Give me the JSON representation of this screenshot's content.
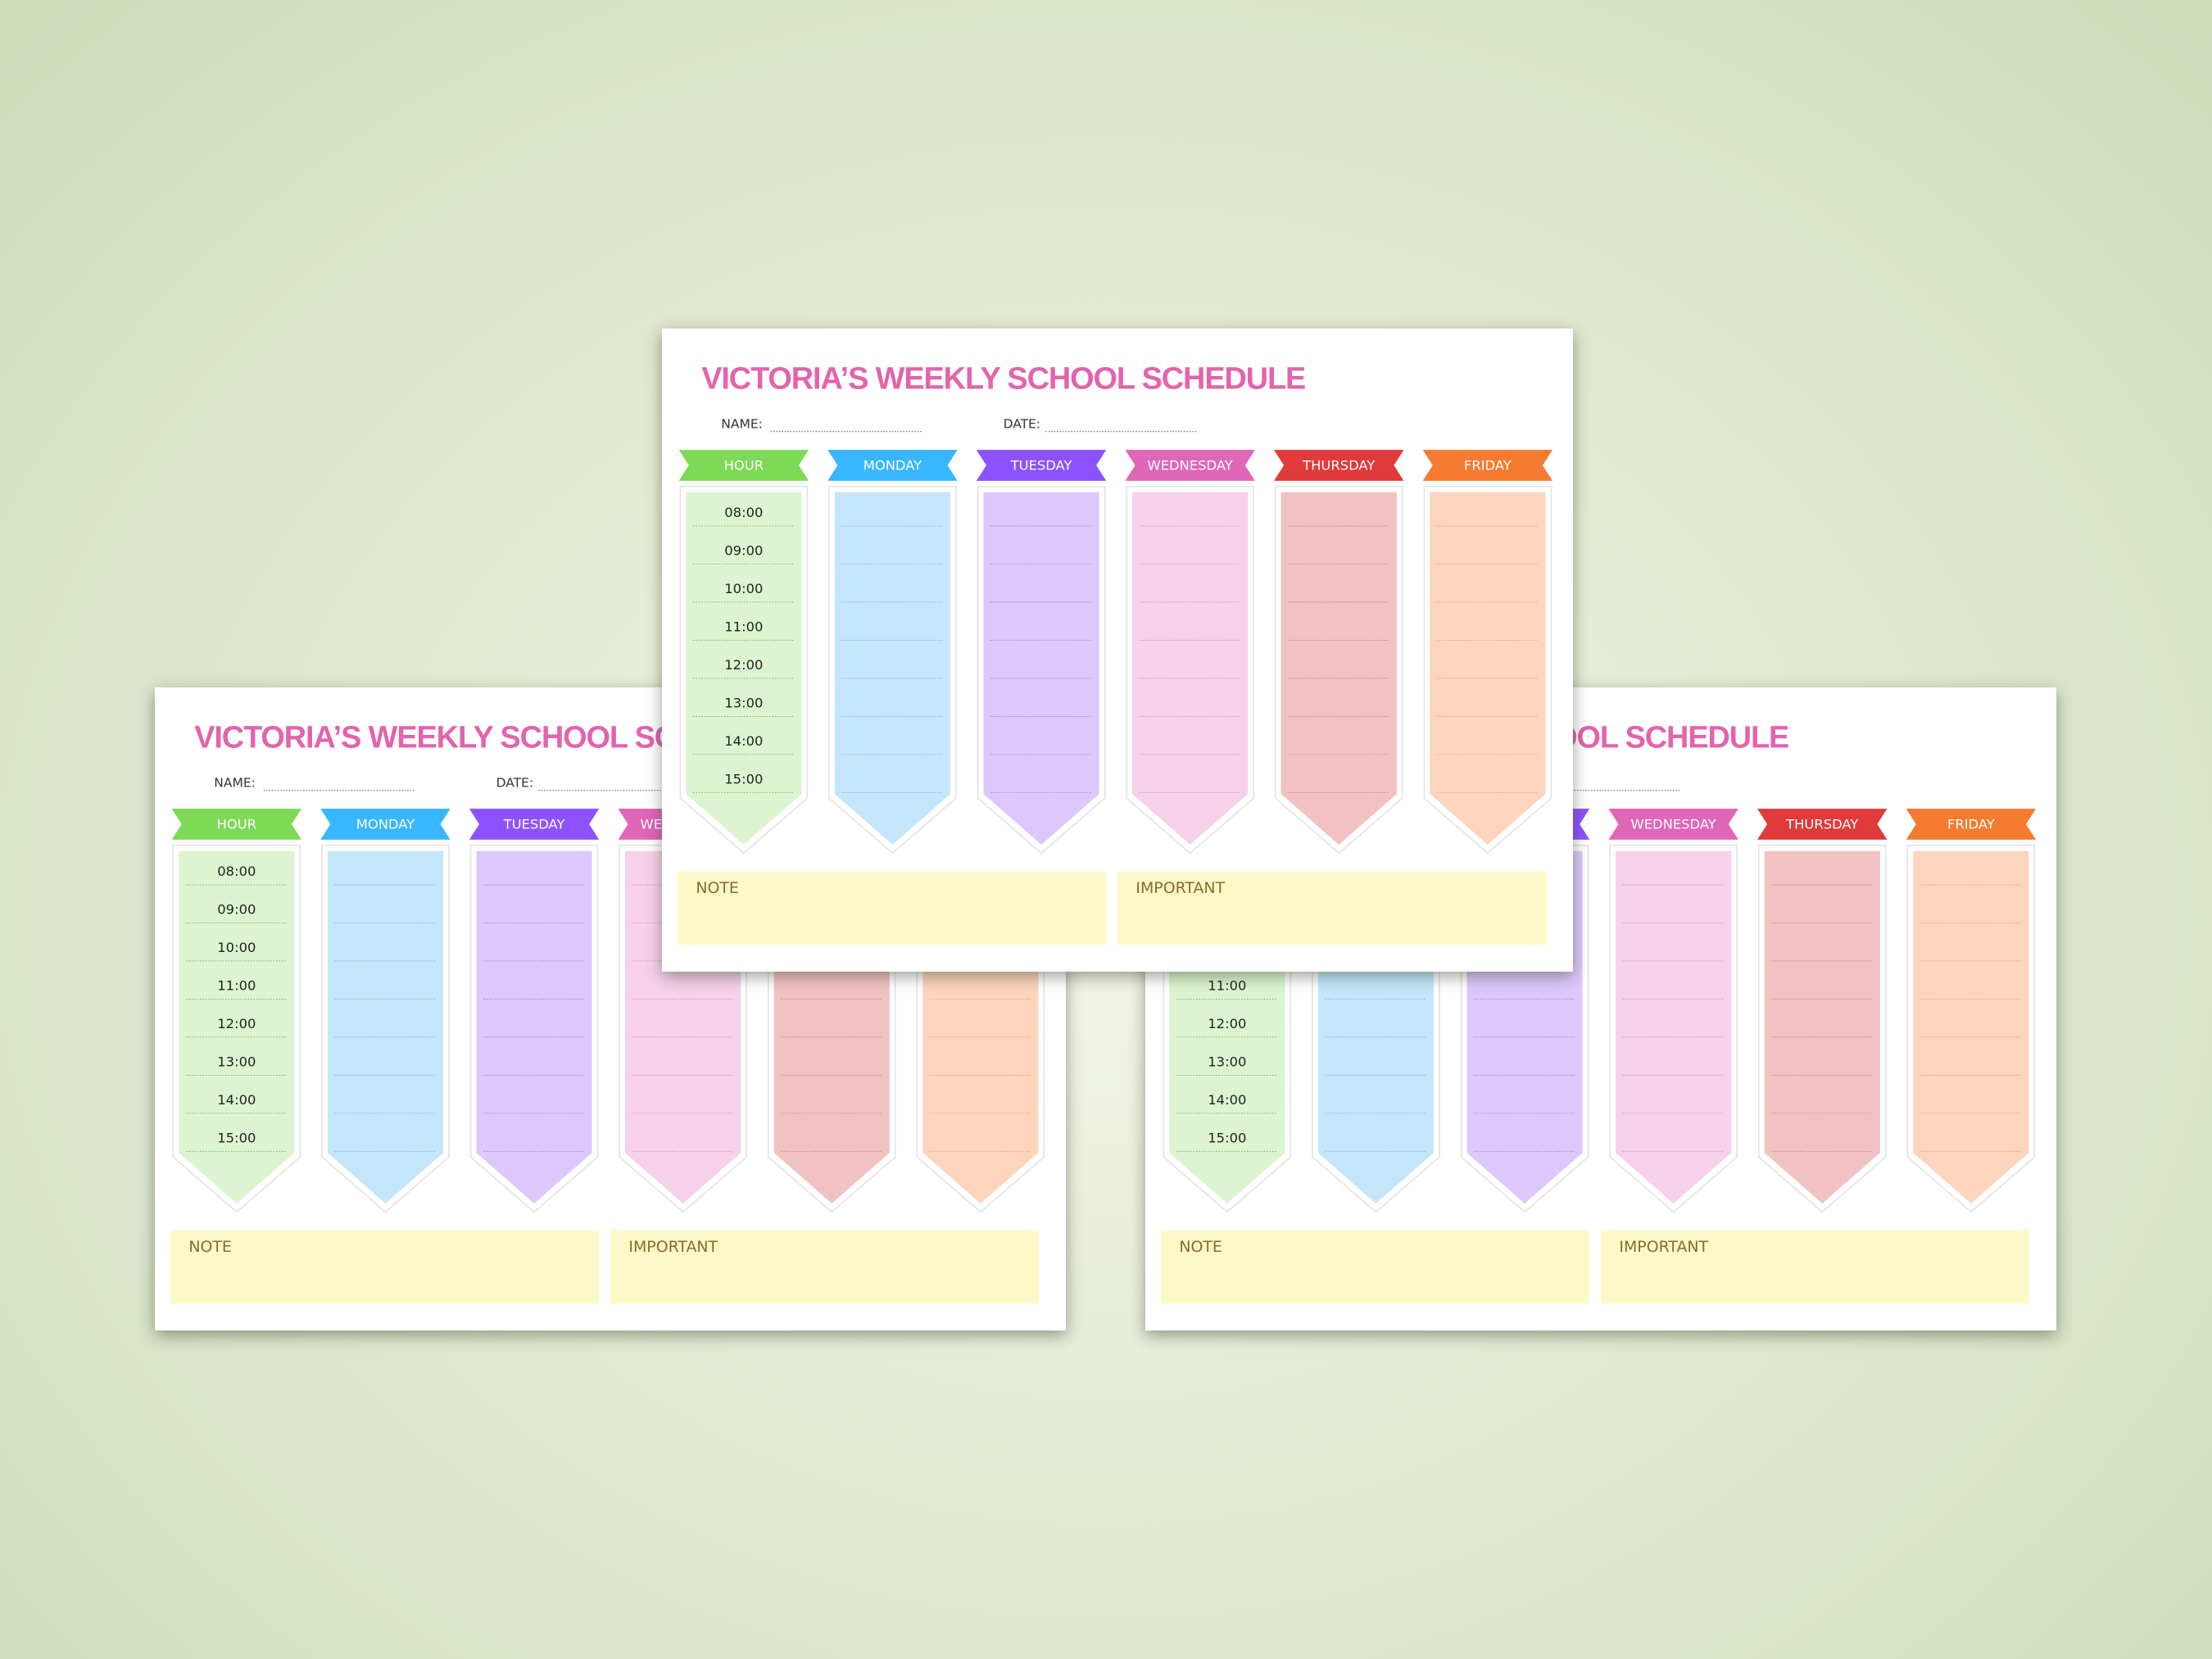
{
  "sheet": {
    "title": "VICTORIA’S WEEKLY SCHOOL SCHEDULE",
    "name_label": "NAME:",
    "date_label": "DATE:",
    "columns": [
      "HOUR",
      "MONDAY",
      "TUESDAY",
      "WEDNESDAY",
      "THURSDAY",
      "FRIDAY"
    ],
    "hours": [
      "08:00",
      "09:00",
      "10:00",
      "11:00",
      "12:00",
      "13:00",
      "14:00",
      "15:00"
    ],
    "note": "NOTE",
    "important": "IMPORTANT"
  }
}
